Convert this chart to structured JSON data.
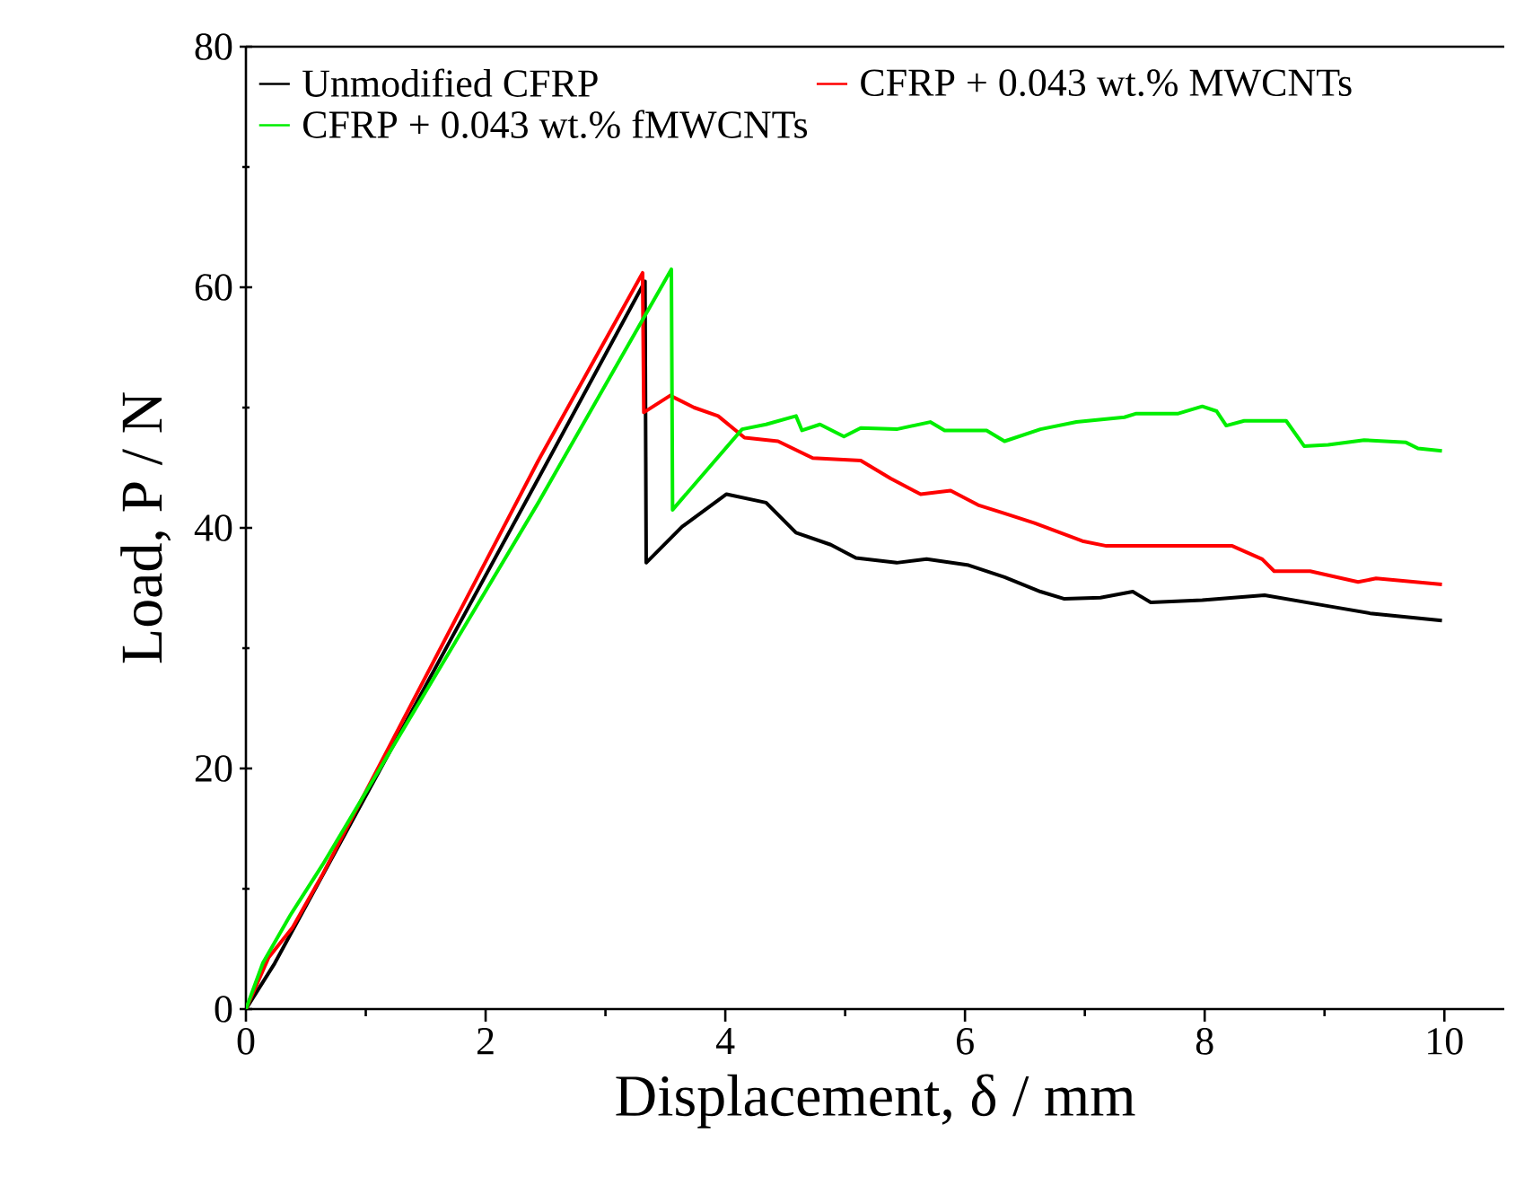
{
  "chart_data": {
    "type": "line",
    "xlabel": "Displacement, δ / mm",
    "ylabel": "Load, P / N",
    "xlim": [
      0,
      10.5
    ],
    "ylim": [
      0,
      80
    ],
    "xticks": [
      0,
      2,
      4,
      6,
      8,
      10
    ],
    "yticks": [
      0,
      20,
      40,
      60,
      80
    ],
    "grid": false,
    "legend": "top left",
    "marker": "none",
    "line_style": "solid",
    "series": [
      {
        "name": "Unmodified CFRP",
        "color": "#000000",
        "x": [
          0,
          0.24,
          2.44,
          3.33,
          3.34,
          3.64,
          4.01,
          4.34,
          4.59,
          4.88,
          5.09,
          5.43,
          5.68,
          6.03,
          6.33,
          6.63,
          6.83,
          7.13,
          7.4,
          7.55,
          7.98,
          8.5,
          9.03,
          9.38,
          9.98
        ],
        "values": [
          0,
          3.8,
          44.1,
          60.5,
          37.1,
          40.1,
          42.8,
          42.1,
          39.6,
          38.6,
          37.5,
          37.1,
          37.4,
          36.9,
          35.9,
          34.7,
          34.1,
          34.2,
          34.7,
          33.8,
          34.0,
          34.4,
          33.5,
          32.9,
          32.3
        ]
      },
      {
        "name": "CFRP + 0.043 wt.% MWCNTs",
        "color": "#ff0000",
        "x": [
          0,
          0.19,
          0.39,
          0.64,
          2.44,
          3.31,
          3.32,
          3.54,
          3.74,
          3.94,
          4.16,
          4.44,
          4.73,
          5.13,
          5.38,
          5.63,
          5.88,
          6.11,
          6.33,
          6.58,
          6.98,
          7.18,
          8.23,
          8.48,
          8.58,
          8.88,
          9.28,
          9.43,
          9.98
        ],
        "values": [
          0,
          4.3,
          6.8,
          11.2,
          45.6,
          61.2,
          49.6,
          51.0,
          50.0,
          49.3,
          47.5,
          47.2,
          45.8,
          45.6,
          44.1,
          42.8,
          43.1,
          41.9,
          41.2,
          40.4,
          38.9,
          38.5,
          38.5,
          37.4,
          36.4,
          36.4,
          35.5,
          35.8,
          35.3
        ]
      },
      {
        "name": "CFRP + 0.043 wt.% fMWCNTs",
        "color": "#00ee00",
        "x": [
          0,
          0.14,
          0.37,
          0.64,
          2.44,
          3.55,
          3.56,
          4.14,
          4.34,
          4.59,
          4.64,
          4.79,
          4.99,
          5.13,
          5.43,
          5.71,
          5.83,
          6.18,
          6.33,
          6.63,
          6.93,
          7.33,
          7.43,
          7.78,
          7.98,
          8.1,
          8.18,
          8.33,
          8.68,
          8.83,
          9.03,
          9.33,
          9.68,
          9.78,
          9.98
        ],
        "values": [
          0,
          3.8,
          7.8,
          12.0,
          42.1,
          61.5,
          41.5,
          48.2,
          48.6,
          49.3,
          48.1,
          48.6,
          47.6,
          48.3,
          48.2,
          48.8,
          48.1,
          48.1,
          47.2,
          48.2,
          48.8,
          49.2,
          49.5,
          49.5,
          50.1,
          49.7,
          48.5,
          48.9,
          48.9,
          46.8,
          46.9,
          47.3,
          47.1,
          46.6,
          46.4
        ]
      }
    ]
  }
}
